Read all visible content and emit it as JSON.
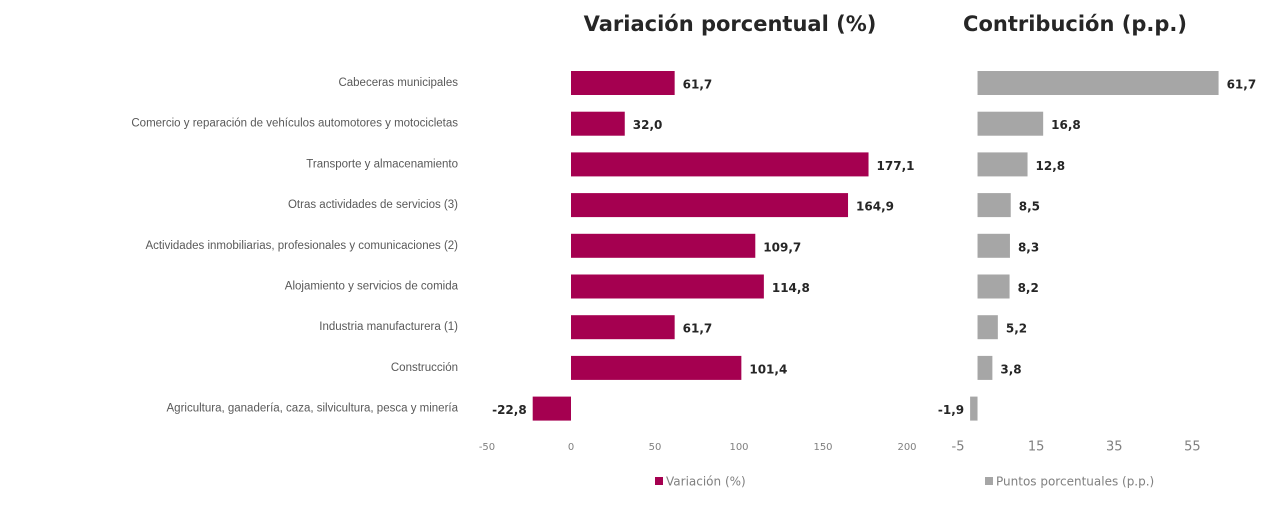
{
  "chart_data": [
    {
      "type": "barh",
      "title": "Variación porcentual (%)",
      "categories": [
        "Cabeceras municipales",
        "Comercio y reparación de vehículos automotores y motocicletas",
        "Transporte y almacenamiento",
        "Otras actividades de servicios (3)",
        "Actividades inmobiliarias, profesionales y comunicaciones (2)",
        "Alojamiento y servicios de comida",
        "Industria manufacturera (1)",
        "Construcción",
        "Agricultura, ganadería, caza, silvicultura, pesca y minería"
      ],
      "series": [
        {
          "name": "Variación (%)",
          "color": "#a50050",
          "values": [
            61.7,
            32.0,
            177.1,
            164.9,
            109.7,
            114.8,
            61.7,
            101.4,
            -22.8
          ],
          "value_labels": [
            "61,7",
            "32,0",
            "177,1",
            "164,9",
            "109,7",
            "114,8",
            "61,7",
            "101,4",
            "-22,8"
          ]
        }
      ],
      "xlim": [
        -50,
        200
      ],
      "xticks": [
        -50,
        0,
        50,
        100,
        150,
        200
      ]
    },
    {
      "type": "barh",
      "title": "Contribución (p.p.)",
      "series": [
        {
          "name": "Puntos porcentuales (p.p.)",
          "color": "#a6a6a6",
          "values": [
            61.7,
            16.8,
            12.8,
            8.5,
            8.3,
            8.2,
            5.2,
            3.8,
            -1.9
          ],
          "value_labels": [
            "61,7",
            "16,8",
            "12,8",
            "8,5",
            "8,3",
            "8,2",
            "5,2",
            "3,8",
            "-1,9"
          ]
        }
      ],
      "xlim": [
        -5,
        70
      ],
      "xticks": [
        -5,
        15,
        35,
        55
      ]
    }
  ]
}
